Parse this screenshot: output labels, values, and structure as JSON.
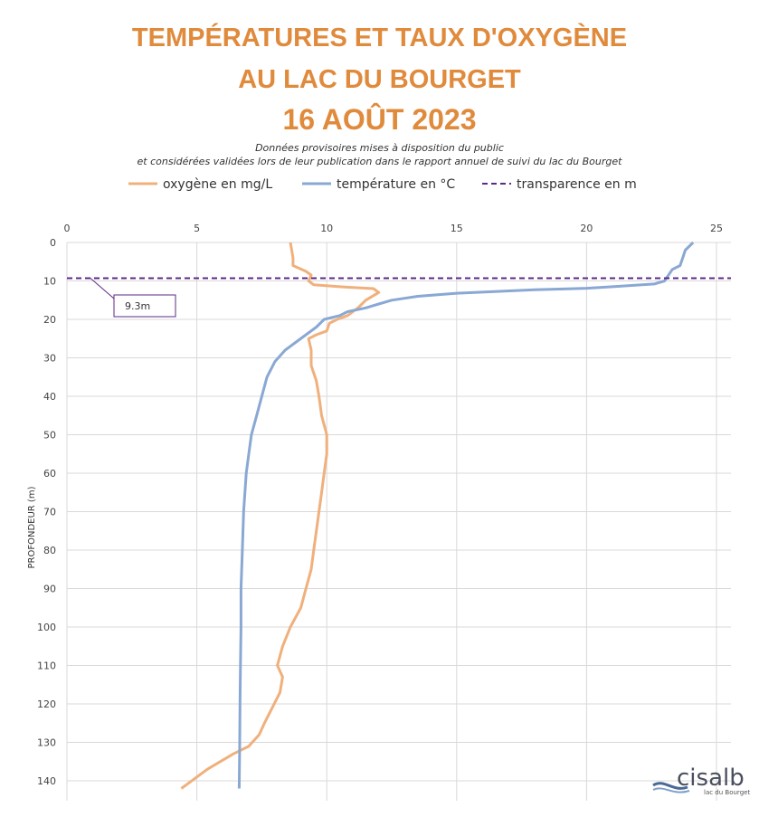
{
  "title_line1": "TEMPÉRATURES ET TAUX D'OXYGÈNE",
  "title_line2": "AU LAC DU BOURGET",
  "title_line3": "16 AOÛT 2023",
  "subtitle_line1": "Données provisoires mises à disposition du public",
  "subtitle_line2": "et considérées validées lors de leur publication dans le rapport annuel de suivi du lac du Bourget",
  "logo": {
    "name": "cisalb",
    "tagline": "lac du Bourget"
  },
  "colors": {
    "oxygen": "#f0b07c",
    "temperature": "#8aa8d4",
    "transparency": "#5b2a86",
    "title": "#e08a3c",
    "grid": "#d9d9d9"
  },
  "chart_data": {
    "type": "line",
    "ylabel": "PROFONDEUR (m)",
    "xlabel": "",
    "xlim": [
      0,
      25
    ],
    "ylim": [
      0,
      142
    ],
    "y_inverted": true,
    "x_axis_position": "top",
    "x_ticks": [
      0,
      5,
      10,
      15,
      20,
      25
    ],
    "y_ticks": [
      0,
      10,
      20,
      30,
      40,
      50,
      60,
      70,
      80,
      90,
      100,
      110,
      120,
      130,
      140
    ],
    "grid": "vertical and horizontal",
    "legend": "top",
    "series": [
      {
        "name": "oxygène en mg/L",
        "points": [
          [
            8.6,
            0
          ],
          [
            8.7,
            4
          ],
          [
            8.7,
            6
          ],
          [
            9.2,
            7.5
          ],
          [
            9.4,
            8.5
          ],
          [
            9.3,
            10
          ],
          [
            9.5,
            11
          ],
          [
            10.5,
            11.5
          ],
          [
            11.8,
            12
          ],
          [
            12.0,
            13
          ],
          [
            11.5,
            15
          ],
          [
            11.2,
            17
          ],
          [
            10.8,
            19
          ],
          [
            10.4,
            20
          ],
          [
            10.1,
            21
          ],
          [
            10.0,
            23
          ],
          [
            9.6,
            24
          ],
          [
            9.3,
            25
          ],
          [
            9.4,
            28
          ],
          [
            9.4,
            32
          ],
          [
            9.6,
            36
          ],
          [
            9.7,
            40
          ],
          [
            9.8,
            45
          ],
          [
            10.0,
            50
          ],
          [
            10.0,
            55
          ],
          [
            9.9,
            60
          ],
          [
            9.8,
            65
          ],
          [
            9.7,
            70
          ],
          [
            9.6,
            75
          ],
          [
            9.5,
            80
          ],
          [
            9.4,
            85
          ],
          [
            9.2,
            90
          ],
          [
            9.0,
            95
          ],
          [
            8.6,
            100
          ],
          [
            8.3,
            105
          ],
          [
            8.1,
            110
          ],
          [
            8.3,
            113
          ],
          [
            8.2,
            117
          ],
          [
            7.9,
            121
          ],
          [
            7.6,
            125
          ],
          [
            7.4,
            128
          ],
          [
            7.0,
            131
          ],
          [
            6.4,
            133
          ],
          [
            5.9,
            135
          ],
          [
            5.4,
            137
          ],
          [
            5.0,
            139
          ],
          [
            4.6,
            141
          ],
          [
            4.4,
            142
          ]
        ]
      },
      {
        "name": "température en °C",
        "points": [
          [
            24.1,
            0
          ],
          [
            23.8,
            2
          ],
          [
            23.7,
            4
          ],
          [
            23.6,
            6
          ],
          [
            23.3,
            7
          ],
          [
            23.1,
            9
          ],
          [
            23.0,
            10
          ],
          [
            22.6,
            10.8
          ],
          [
            21.0,
            11.5
          ],
          [
            20.0,
            11.9
          ],
          [
            18.0,
            12.3
          ],
          [
            15.0,
            13.2
          ],
          [
            13.5,
            14.0
          ],
          [
            12.5,
            15.0
          ],
          [
            12.0,
            16.0
          ],
          [
            11.5,
            17.0
          ],
          [
            10.8,
            18.0
          ],
          [
            10.5,
            19.0
          ],
          [
            9.9,
            20.0
          ],
          [
            9.6,
            22
          ],
          [
            9.2,
            24
          ],
          [
            8.8,
            26
          ],
          [
            8.4,
            28
          ],
          [
            8.0,
            31
          ],
          [
            7.7,
            35
          ],
          [
            7.5,
            40
          ],
          [
            7.3,
            45
          ],
          [
            7.1,
            50
          ],
          [
            7.0,
            55
          ],
          [
            6.9,
            60
          ],
          [
            6.8,
            70
          ],
          [
            6.75,
            80
          ],
          [
            6.7,
            90
          ],
          [
            6.7,
            100
          ],
          [
            6.68,
            110
          ],
          [
            6.66,
            120
          ],
          [
            6.65,
            130
          ],
          [
            6.63,
            142
          ]
        ]
      },
      {
        "name": "transparence en m",
        "value": 9.3,
        "label": "9.3m"
      }
    ]
  }
}
